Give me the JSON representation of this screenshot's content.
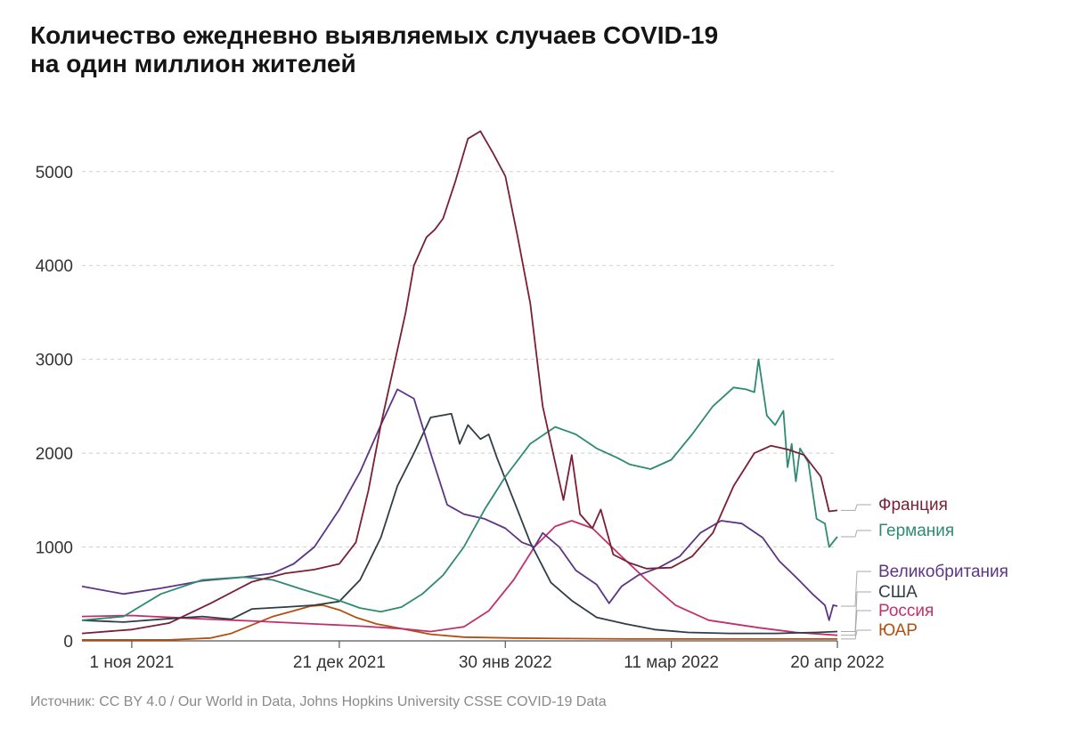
{
  "title_lines": [
    "Количество ежедневно выявляемых случаев COVID-19",
    "на один миллион жителей"
  ],
  "source": "Источник: CC BY 4.0 / Our World in Data, Johns Hopkins University CSSE COVID-19 Data",
  "chart_data": {
    "type": "line",
    "title": "Количество ежедневно выявляемых случаев COVID-19 на один миллион жителей",
    "x_start": "2021-10-20",
    "x_end": "2022-04-20",
    "xticks": [
      {
        "date": "2021-11-01",
        "label": "1 ноя 2021"
      },
      {
        "date": "2021-12-21",
        "label": "21 дек 2021"
      },
      {
        "date": "2022-01-30",
        "label": "30 янв 2022"
      },
      {
        "date": "2022-03-11",
        "label": "11 мар 2022"
      },
      {
        "date": "2022-04-20",
        "label": "20 апр 2022"
      }
    ],
    "yticks": [
      0,
      1000,
      2000,
      3000,
      4000,
      5000
    ],
    "ylim": [
      0,
      5500
    ],
    "grid": "horizontal dashed",
    "series": [
      {
        "name": "Франция",
        "color": "#7a1f35",
        "label_y": 1400,
        "points": [
          [
            "2021-10-20",
            80
          ],
          [
            "2021-11-01",
            120
          ],
          [
            "2021-11-10",
            190
          ],
          [
            "2021-11-20",
            400
          ],
          [
            "2021-11-30",
            630
          ],
          [
            "2021-12-08",
            720
          ],
          [
            "2021-12-15",
            760
          ],
          [
            "2021-12-21",
            820
          ],
          [
            "2021-12-25",
            1050
          ],
          [
            "2021-12-28",
            1600
          ],
          [
            "2021-12-31",
            2300
          ],
          [
            "2022-01-03",
            2900
          ],
          [
            "2022-01-06",
            3500
          ],
          [
            "2022-01-08",
            4000
          ],
          [
            "2022-01-11",
            4300
          ],
          [
            "2022-01-13",
            4380
          ],
          [
            "2022-01-15",
            4500
          ],
          [
            "2022-01-18",
            4900
          ],
          [
            "2022-01-21",
            5350
          ],
          [
            "2022-01-24",
            5430
          ],
          [
            "2022-01-27",
            5200
          ],
          [
            "2022-01-30",
            4950
          ],
          [
            "2022-02-02",
            4300
          ],
          [
            "2022-02-05",
            3600
          ],
          [
            "2022-02-08",
            2500
          ],
          [
            "2022-02-11",
            1900
          ],
          [
            "2022-02-13",
            1500
          ],
          [
            "2022-02-15",
            1980
          ],
          [
            "2022-02-17",
            1350
          ],
          [
            "2022-02-20",
            1200
          ],
          [
            "2022-02-22",
            1400
          ],
          [
            "2022-02-25",
            920
          ],
          [
            "2022-03-01",
            830
          ],
          [
            "2022-03-05",
            770
          ],
          [
            "2022-03-11",
            780
          ],
          [
            "2022-03-16",
            900
          ],
          [
            "2022-03-21",
            1150
          ],
          [
            "2022-03-26",
            1650
          ],
          [
            "2022-03-31",
            2000
          ],
          [
            "2022-04-04",
            2080
          ],
          [
            "2022-04-08",
            2040
          ],
          [
            "2022-04-12",
            1980
          ],
          [
            "2022-04-16",
            1750
          ],
          [
            "2022-04-18",
            1380
          ],
          [
            "2022-04-20",
            1390
          ]
        ]
      },
      {
        "name": "Германия",
        "color": "#2e8b72",
        "label_y": 1110,
        "points": [
          [
            "2021-10-20",
            220
          ],
          [
            "2021-10-30",
            260
          ],
          [
            "2021-11-08",
            500
          ],
          [
            "2021-11-18",
            650
          ],
          [
            "2021-11-28",
            680
          ],
          [
            "2021-12-05",
            650
          ],
          [
            "2021-12-12",
            550
          ],
          [
            "2021-12-21",
            430
          ],
          [
            "2021-12-26",
            350
          ],
          [
            "2021-12-31",
            310
          ],
          [
            "2022-01-05",
            360
          ],
          [
            "2022-01-10",
            500
          ],
          [
            "2022-01-15",
            700
          ],
          [
            "2022-01-20",
            1000
          ],
          [
            "2022-01-25",
            1400
          ],
          [
            "2022-01-30",
            1750
          ],
          [
            "2022-02-05",
            2100
          ],
          [
            "2022-02-11",
            2280
          ],
          [
            "2022-02-16",
            2200
          ],
          [
            "2022-02-21",
            2050
          ],
          [
            "2022-02-26",
            1950
          ],
          [
            "2022-03-01",
            1880
          ],
          [
            "2022-03-06",
            1830
          ],
          [
            "2022-03-11",
            1930
          ],
          [
            "2022-03-16",
            2200
          ],
          [
            "2022-03-21",
            2500
          ],
          [
            "2022-03-26",
            2700
          ],
          [
            "2022-03-29",
            2680
          ],
          [
            "2022-03-31",
            2650
          ],
          [
            "2022-04-01",
            3000
          ],
          [
            "2022-04-03",
            2400
          ],
          [
            "2022-04-05",
            2300
          ],
          [
            "2022-04-07",
            2450
          ],
          [
            "2022-04-08",
            1850
          ],
          [
            "2022-04-09",
            2100
          ],
          [
            "2022-04-10",
            1700
          ],
          [
            "2022-04-11",
            2050
          ],
          [
            "2022-04-13",
            1900
          ],
          [
            "2022-04-15",
            1300
          ],
          [
            "2022-04-17",
            1250
          ],
          [
            "2022-04-18",
            1000
          ],
          [
            "2022-04-20",
            1110
          ]
        ]
      },
      {
        "name": "Великобритания",
        "color": "#5c3586",
        "label_y": 420,
        "points": [
          [
            "2021-10-20",
            580
          ],
          [
            "2021-10-30",
            500
          ],
          [
            "2021-11-08",
            560
          ],
          [
            "2021-11-18",
            640
          ],
          [
            "2021-11-28",
            680
          ],
          [
            "2021-12-05",
            720
          ],
          [
            "2021-12-10",
            820
          ],
          [
            "2021-12-15",
            1000
          ],
          [
            "2021-12-21",
            1400
          ],
          [
            "2021-12-26",
            1800
          ],
          [
            "2021-12-31",
            2300
          ],
          [
            "2022-01-04",
            2680
          ],
          [
            "2022-01-08",
            2580
          ],
          [
            "2022-01-12",
            2000
          ],
          [
            "2022-01-16",
            1450
          ],
          [
            "2022-01-20",
            1350
          ],
          [
            "2022-01-25",
            1300
          ],
          [
            "2022-01-30",
            1200
          ],
          [
            "2022-02-03",
            1050
          ],
          [
            "2022-02-06",
            1000
          ],
          [
            "2022-02-08",
            1150
          ],
          [
            "2022-02-12",
            1000
          ],
          [
            "2022-02-16",
            750
          ],
          [
            "2022-02-21",
            600
          ],
          [
            "2022-02-24",
            400
          ],
          [
            "2022-02-27",
            580
          ],
          [
            "2022-03-03",
            700
          ],
          [
            "2022-03-08",
            780
          ],
          [
            "2022-03-13",
            900
          ],
          [
            "2022-03-18",
            1150
          ],
          [
            "2022-03-23",
            1280
          ],
          [
            "2022-03-28",
            1250
          ],
          [
            "2022-04-02",
            1100
          ],
          [
            "2022-04-06",
            850
          ],
          [
            "2022-04-10",
            680
          ],
          [
            "2022-04-14",
            500
          ],
          [
            "2022-04-17",
            380
          ],
          [
            "2022-04-18",
            220
          ],
          [
            "2022-04-19",
            380
          ],
          [
            "2022-04-20",
            370
          ]
        ]
      },
      {
        "name": "США",
        "color": "#2f3d48",
        "label_y": 200,
        "points": [
          [
            "2021-10-20",
            220
          ],
          [
            "2021-10-30",
            200
          ],
          [
            "2021-11-08",
            230
          ],
          [
            "2021-11-18",
            260
          ],
          [
            "2021-11-25",
            230
          ],
          [
            "2021-11-30",
            340
          ],
          [
            "2021-12-08",
            360
          ],
          [
            "2021-12-15",
            380
          ],
          [
            "2021-12-21",
            420
          ],
          [
            "2021-12-26",
            650
          ],
          [
            "2021-12-31",
            1100
          ],
          [
            "2022-01-04",
            1650
          ],
          [
            "2022-01-08",
            2000
          ],
          [
            "2022-01-12",
            2380
          ],
          [
            "2022-01-17",
            2420
          ],
          [
            "2022-01-19",
            2100
          ],
          [
            "2022-01-21",
            2300
          ],
          [
            "2022-01-24",
            2150
          ],
          [
            "2022-01-26",
            2200
          ],
          [
            "2022-01-28",
            1950
          ],
          [
            "2022-02-01",
            1500
          ],
          [
            "2022-02-05",
            1050
          ],
          [
            "2022-02-10",
            620
          ],
          [
            "2022-02-15",
            430
          ],
          [
            "2022-02-21",
            250
          ],
          [
            "2022-02-28",
            180
          ],
          [
            "2022-03-07",
            120
          ],
          [
            "2022-03-15",
            90
          ],
          [
            "2022-03-25",
            80
          ],
          [
            "2022-04-05",
            80
          ],
          [
            "2022-04-15",
            90
          ],
          [
            "2022-04-20",
            100
          ]
        ]
      },
      {
        "name": "Россия",
        "color": "#c2306a",
        "label_y": 0,
        "points": [
          [
            "2021-10-20",
            260
          ],
          [
            "2021-11-01",
            270
          ],
          [
            "2021-11-15",
            240
          ],
          [
            "2021-12-01",
            210
          ],
          [
            "2021-12-15",
            180
          ],
          [
            "2021-12-25",
            160
          ],
          [
            "2022-01-05",
            130
          ],
          [
            "2022-01-12",
            100
          ],
          [
            "2022-01-20",
            150
          ],
          [
            "2022-01-26",
            320
          ],
          [
            "2022-02-01",
            650
          ],
          [
            "2022-02-06",
            1000
          ],
          [
            "2022-02-11",
            1220
          ],
          [
            "2022-02-15",
            1280
          ],
          [
            "2022-02-20",
            1200
          ],
          [
            "2022-02-27",
            900
          ],
          [
            "2022-03-05",
            650
          ],
          [
            "2022-03-12",
            380
          ],
          [
            "2022-03-20",
            220
          ],
          [
            "2022-04-01",
            140
          ],
          [
            "2022-04-10",
            90
          ],
          [
            "2022-04-20",
            60
          ]
        ]
      },
      {
        "name": "ЮАР",
        "color": "#b25012",
        "label_y": -180,
        "points": [
          [
            "2021-10-20",
            10
          ],
          [
            "2021-11-10",
            10
          ],
          [
            "2021-11-20",
            30
          ],
          [
            "2021-11-25",
            80
          ],
          [
            "2021-11-30",
            170
          ],
          [
            "2021-12-05",
            260
          ],
          [
            "2021-12-10",
            320
          ],
          [
            "2021-12-14",
            370
          ],
          [
            "2021-12-17",
            380
          ],
          [
            "2021-12-21",
            330
          ],
          [
            "2021-12-25",
            250
          ],
          [
            "2021-12-30",
            180
          ],
          [
            "2022-01-05",
            130
          ],
          [
            "2022-01-12",
            70
          ],
          [
            "2022-01-20",
            40
          ],
          [
            "2022-02-01",
            30
          ],
          [
            "2022-02-15",
            25
          ],
          [
            "2022-03-01",
            20
          ],
          [
            "2022-04-01",
            20
          ],
          [
            "2022-04-20",
            20
          ]
        ]
      }
    ]
  }
}
